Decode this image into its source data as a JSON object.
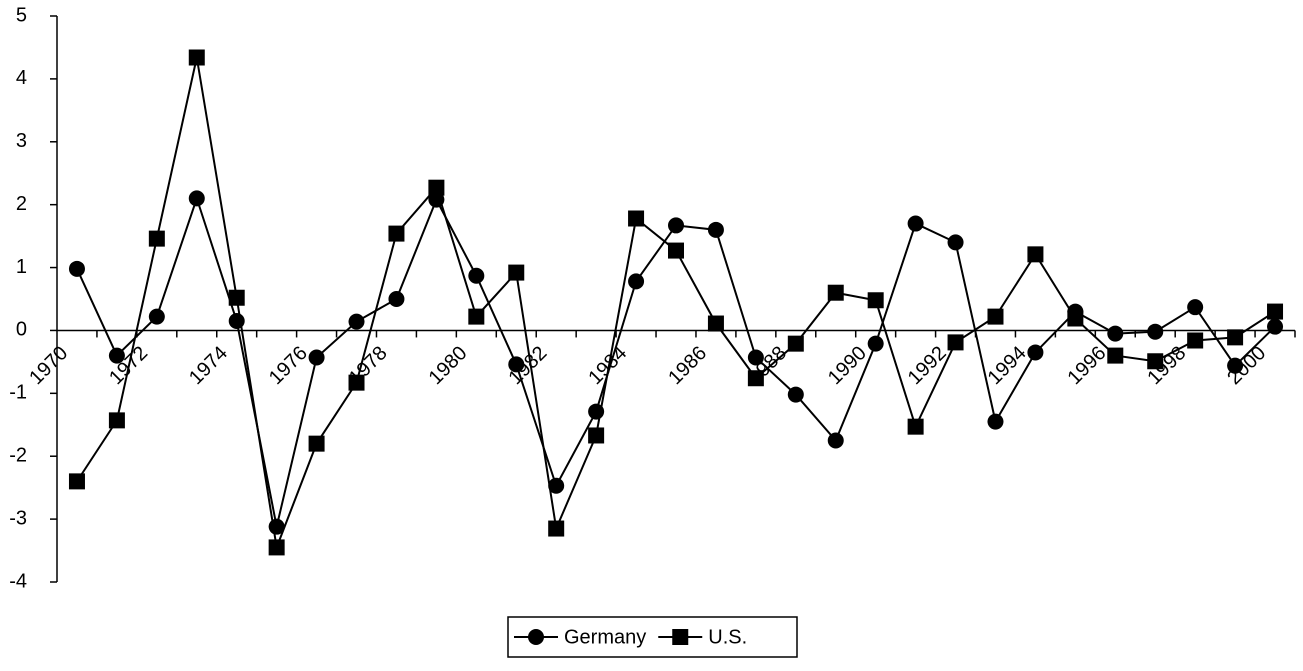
{
  "chart_data": {
    "type": "line",
    "categories": [
      "1970",
      null,
      "1972",
      null,
      "1974",
      null,
      "1976",
      null,
      "1978",
      null,
      "1980",
      null,
      "1982",
      null,
      "1984",
      null,
      "1986",
      null,
      "1988",
      null,
      "1990",
      null,
      "1992",
      null,
      "1994",
      null,
      "1996",
      null,
      "1998",
      null,
      "2000"
    ],
    "series": [
      {
        "name": "Germany",
        "color": "#000000",
        "marker": "circle",
        "values": [
          0.98,
          -0.4,
          0.22,
          2.1,
          0.15,
          -3.12,
          -0.43,
          0.14,
          0.5,
          2.08,
          0.87,
          -0.54,
          -2.47,
          -1.29,
          0.78,
          1.67,
          1.6,
          -0.43,
          -1.02,
          -1.75,
          -0.21,
          1.7,
          1.4,
          -1.45,
          -0.35,
          0.3,
          -0.05,
          -0.02,
          0.37,
          -0.56,
          0.06
        ]
      },
      {
        "name": "U.S.",
        "color": "#000000",
        "marker": "square",
        "values": [
          -2.4,
          -1.43,
          1.46,
          4.34,
          0.52,
          -3.45,
          -1.8,
          -0.83,
          1.54,
          2.27,
          0.22,
          0.92,
          -3.15,
          -1.67,
          1.78,
          1.27,
          0.11,
          -0.76,
          -0.21,
          0.6,
          0.48,
          -1.53,
          -0.19,
          0.22,
          1.21,
          0.19,
          -0.4,
          -0.49,
          -0.16,
          -0.11,
          0.3
        ]
      }
    ],
    "ylim": [
      -4,
      5
    ],
    "yticks": [
      -4,
      -3,
      -2,
      -1,
      0,
      1,
      2,
      3,
      4,
      5
    ],
    "grid": false,
    "legend": "bottom"
  }
}
